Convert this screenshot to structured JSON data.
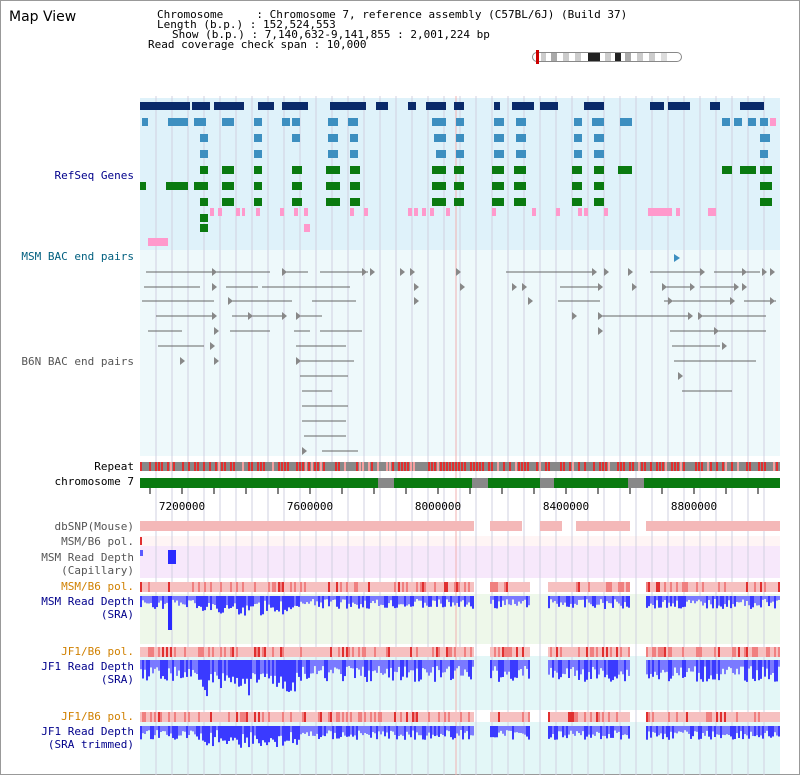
{
  "view_title": "Map View",
  "info": {
    "chromosome_line": "Chromosome     : Chromosome 7, reference assembly (C57BL/6J) (Build 37)",
    "length_line": "Length (b.p.) : 152,524,553",
    "show_line": "Show (b.p.) : 7,140,632-9,141,855 : 2,001,224 bp",
    "coverage_line": "Read coverage check span : 10,000"
  },
  "tracks": {
    "refseq": "RefSeq Genes",
    "msm_bac": "MSM BAC end pairs",
    "b6n_bac": "B6N BAC end pairs",
    "repeat": "Repeat",
    "chromosome": "chromosome 7",
    "dbsnp": "dbSNP(Mouse)",
    "msm_b6_pol_1": "MSM/B6 pol.",
    "msm_read_depth_cap_1": "MSM Read Depth",
    "msm_read_depth_cap_2": "(Capillary)",
    "msm_b6_pol_2": "MSM/B6 pol.",
    "msm_read_depth_sra_1": "MSM Read Depth",
    "msm_read_depth_sra_2": "(SRA)",
    "jf1_b6_pol_1": "JF1/B6 pol.",
    "jf1_read_depth_1": "JF1 Read Depth",
    "jf1_read_depth_2": "(SRA)",
    "jf1_b6_pol_2": "JF1/B6 pol.",
    "jf1_read_depth_trim_1": "JF1 Read Depth",
    "jf1_read_depth_trim_2": "(SRA trimmed)"
  },
  "axis": {
    "ticks": [
      "7200000",
      "7600000",
      "8000000",
      "8400000",
      "8800000"
    ]
  },
  "colors": {
    "refseq_bg": "#dff2fa",
    "bac_bg": "#eef9fb",
    "gene_dark": "#0a2a6a",
    "gene_mid": "#3d8fc0",
    "gene_green": "#0a7a10",
    "gene_pink": "#ff99cc",
    "repeat_red": "#e03030",
    "chrom_green": "#0a7a10",
    "snp_pink": "#f4b8b8",
    "depth_blue": "#5a5aff",
    "msm_bg": "#f7e8fb",
    "msm_sra_bg": "#eef8ea",
    "jf1_bg": "#e3f7f7"
  }
}
